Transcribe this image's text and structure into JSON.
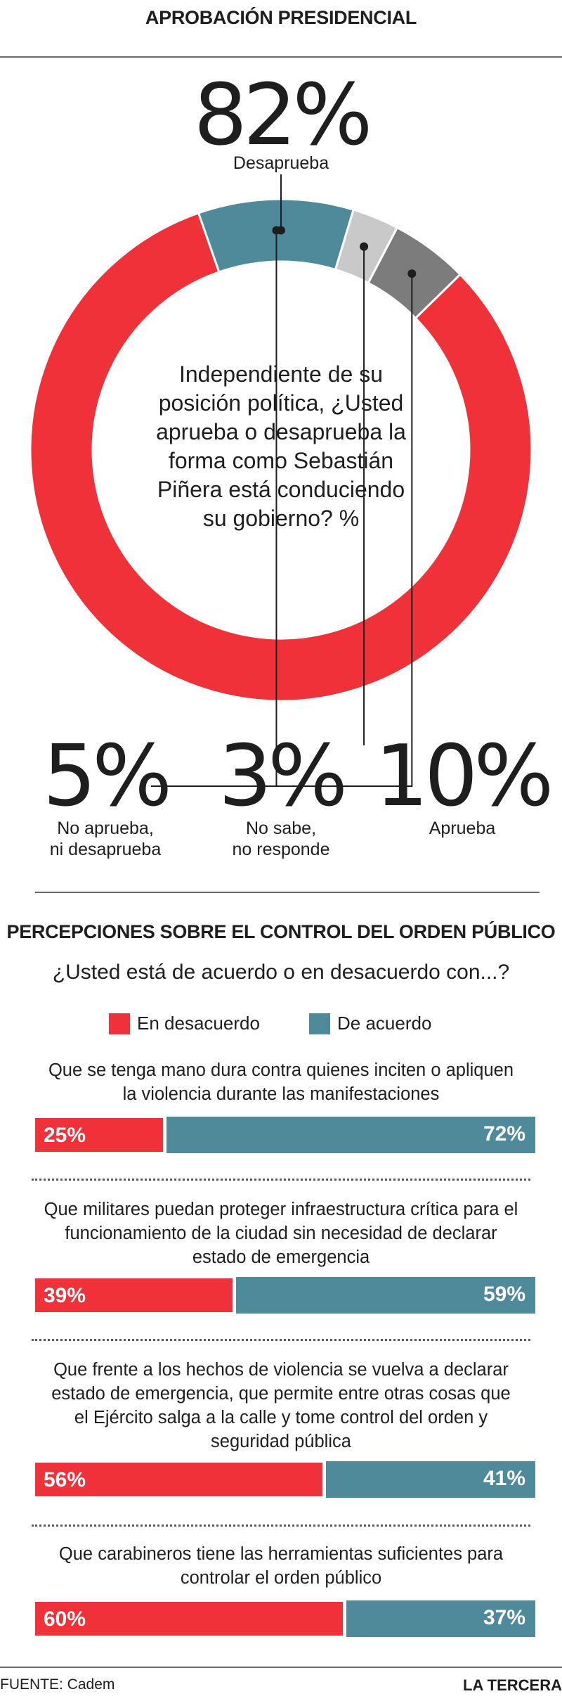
{
  "header": {
    "title": "APROBACIÓN PRESIDENCIAL"
  },
  "donut": {
    "question": "Independiente de su posición política, ¿Usted aprueba o desaprueba la forma como Sebastián Piñera está conduciendo su gobierno? %"
  },
  "colors": {
    "disapprove": "#ef3139",
    "approve": "#4f8a9a",
    "neither": "#7c7c7c",
    "no_answer": "#c9c9c9"
  },
  "section2": {
    "title": "PERCEPCIONES SOBRE EL CONTROL DEL ORDEN PÚBLICO",
    "subtitle": "¿Usted está de acuerdo o en desacuerdo con...?",
    "legend": {
      "disagree": "En desacuerdo",
      "agree": "De acuerdo"
    }
  },
  "chart_data": [
    {
      "type": "pie",
      "title": "APROBACIÓN PRESIDENCIAL",
      "slices": [
        {
          "label": "Desaprueba",
          "value": 82,
          "display": "82%"
        },
        {
          "label": "Aprueba",
          "value": 10,
          "display": "10%"
        },
        {
          "label": "No sabe, no responde",
          "label_lines": [
            "No sabe,",
            "no responde"
          ],
          "value": 3,
          "display": "3%"
        },
        {
          "label": "No aprueba, ni desaprueba",
          "label_lines": [
            "No aprueba,",
            "ni desaprueba"
          ],
          "value": 5,
          "display": "5%"
        }
      ]
    },
    {
      "type": "bar",
      "title": "PERCEPCIONES SOBRE EL CONTROL DEL ORDEN PÚBLICO",
      "categories": [
        "Que se tenga mano dura contra quienes inciten o apliquen la violencia durante las manifestaciones",
        "Que militares puedan proteger infraestructura crítica para el funcionamiento de la ciudad sin necesidad de declarar estado de emergencia",
        "Que frente a los hechos de violencia se vuelva a declarar estado de emergencia, que permite entre otras cosas que el Ejército salga a la calle y tome control del orden y seguridad pública",
        "Que carabineros tiene las herramientas suficientes para controlar el orden público"
      ],
      "series": [
        {
          "name": "En desacuerdo",
          "values": [
            25,
            39,
            56,
            60
          ],
          "labels": [
            "25%",
            "39%",
            "56%",
            "60%"
          ]
        },
        {
          "name": "De acuerdo",
          "values": [
            72,
            59,
            41,
            37
          ],
          "labels": [
            "72%",
            "59%",
            "41%",
            "37%"
          ]
        }
      ]
    }
  ],
  "footer": {
    "source": "FUENTE: Cadem",
    "brand": "LA TERCERA"
  }
}
